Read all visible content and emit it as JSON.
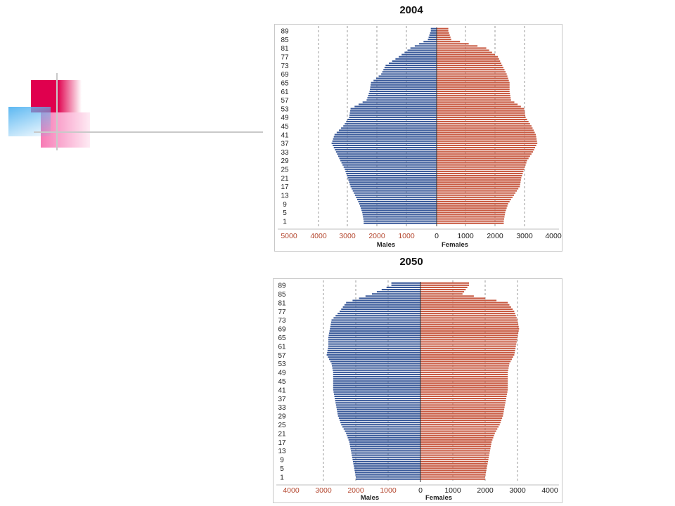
{
  "colors": {
    "males": "#3a5a9a",
    "females": "#c85a42",
    "tick_red": "#b4472f",
    "deco_magenta": "#e0004e",
    "deco_pink": "#f77ab5",
    "deco_blue": "#5db8f2",
    "deco_line": "#c9c9c9"
  },
  "chart_data": [
    {
      "type": "bar",
      "orientation": "horizontal-population-pyramid",
      "title": "2004",
      "xlabel_left": "Males",
      "xlabel_right": "Females",
      "xlim_males": [
        5000,
        0
      ],
      "xlim_females": [
        0,
        4000
      ],
      "male_ticks": [
        "5000",
        "4000",
        "3000",
        "2000",
        "1000"
      ],
      "female_ticks": [
        "0",
        "1000",
        "2000",
        "3000",
        "4000"
      ],
      "age_labels": [
        "89",
        "85",
        "81",
        "77",
        "73",
        "69",
        "65",
        "61",
        "57",
        "53",
        "49",
        "45",
        "41",
        "37",
        "33",
        "29",
        "25",
        "21",
        "17",
        "13",
        "9",
        "5",
        "1"
      ],
      "age_label_values": [
        89,
        85,
        81,
        77,
        73,
        69,
        65,
        61,
        57,
        53,
        49,
        45,
        41,
        37,
        33,
        29,
        25,
        21,
        17,
        13,
        9,
        5,
        1
      ],
      "grid": true,
      "series": [
        {
          "name": "Males",
          "x": [
            1,
            5,
            9,
            13,
            17,
            21,
            25,
            29,
            33,
            37,
            41,
            45,
            49,
            53,
            57,
            61,
            65,
            69,
            73,
            77,
            81,
            85,
            89
          ],
          "values": [
            2500,
            2550,
            2650,
            2800,
            2950,
            3050,
            3150,
            3300,
            3450,
            3600,
            3500,
            3200,
            3000,
            2950,
            2400,
            2300,
            2250,
            1900,
            1750,
            1300,
            900,
            300,
            200
          ]
        },
        {
          "name": "Females",
          "x": [
            1,
            5,
            9,
            13,
            17,
            21,
            25,
            29,
            33,
            37,
            41,
            45,
            49,
            53,
            57,
            61,
            65,
            69,
            73,
            77,
            81,
            85,
            89
          ],
          "values": [
            2300,
            2350,
            2450,
            2650,
            2850,
            2900,
            3000,
            3100,
            3300,
            3450,
            3400,
            3250,
            3050,
            3000,
            2550,
            2500,
            2500,
            2400,
            2250,
            2100,
            1700,
            500,
            400
          ]
        }
      ]
    },
    {
      "type": "bar",
      "orientation": "horizontal-population-pyramid",
      "title": "2050",
      "xlabel_left": "Males",
      "xlabel_right": "Females",
      "xlim_males": [
        4000,
        0
      ],
      "xlim_females": [
        0,
        4000
      ],
      "male_ticks": [
        "4000",
        "3000",
        "2000",
        "1000",
        "0"
      ],
      "female_ticks": [
        "1000",
        "2000",
        "3000",
        "4000"
      ],
      "age_labels": [
        "89",
        "85",
        "81",
        "77",
        "73",
        "69",
        "65",
        "61",
        "57",
        "53",
        "49",
        "45",
        "41",
        "37",
        "33",
        "29",
        "25",
        "21",
        "17",
        "13",
        "9",
        "5",
        "1"
      ],
      "age_label_values": [
        89,
        85,
        81,
        77,
        73,
        69,
        65,
        61,
        57,
        53,
        49,
        45,
        41,
        37,
        33,
        29,
        25,
        21,
        17,
        13,
        9,
        5,
        1
      ],
      "grid": true,
      "series": [
        {
          "name": "Males",
          "x": [
            1,
            5,
            9,
            13,
            17,
            21,
            25,
            29,
            33,
            37,
            41,
            45,
            49,
            53,
            57,
            61,
            65,
            69,
            73,
            77,
            81,
            85,
            89
          ],
          "values": [
            2000,
            2050,
            2100,
            2150,
            2200,
            2300,
            2450,
            2550,
            2600,
            2650,
            2700,
            2700,
            2700,
            2750,
            2900,
            2850,
            2850,
            2800,
            2750,
            2500,
            2300,
            1500,
            900
          ]
        },
        {
          "name": "Females",
          "x": [
            1,
            5,
            9,
            13,
            17,
            21,
            25,
            29,
            33,
            37,
            41,
            45,
            49,
            53,
            57,
            61,
            65,
            69,
            73,
            77,
            81,
            85,
            89
          ],
          "values": [
            2000,
            2050,
            2100,
            2150,
            2200,
            2300,
            2450,
            2550,
            2600,
            2650,
            2700,
            2700,
            2700,
            2750,
            2900,
            2950,
            3000,
            3050,
            3000,
            2900,
            2700,
            1300,
            1500
          ]
        }
      ]
    }
  ]
}
